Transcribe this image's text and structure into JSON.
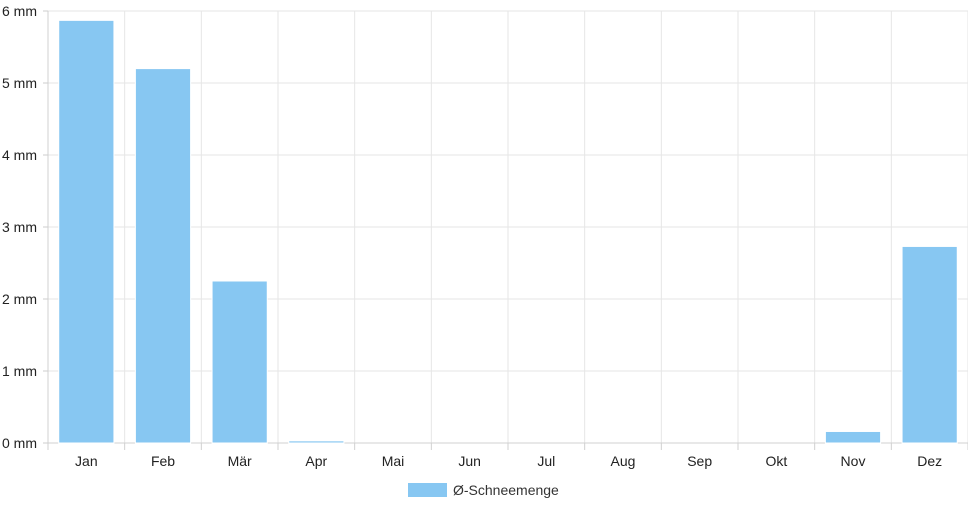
{
  "chart_data": {
    "type": "bar",
    "categories": [
      "Jan",
      "Feb",
      "Mär",
      "Apr",
      "Mai",
      "Jun",
      "Jul",
      "Aug",
      "Sep",
      "Okt",
      "Nov",
      "Dez"
    ],
    "series": [
      {
        "name": "Ø-Schneemenge",
        "values": [
          5.87,
          5.2,
          2.25,
          0.03,
          0,
          0,
          0,
          0,
          0,
          0,
          0.16,
          2.73
        ],
        "color": "#87c7f2"
      }
    ],
    "y_ticks": [
      "0 mm",
      "1 mm",
      "2 mm",
      "3 mm",
      "4 mm",
      "5 mm",
      "6 mm"
    ],
    "ylim": [
      0,
      6
    ],
    "grid": true,
    "legend_position": "bottom-center"
  }
}
